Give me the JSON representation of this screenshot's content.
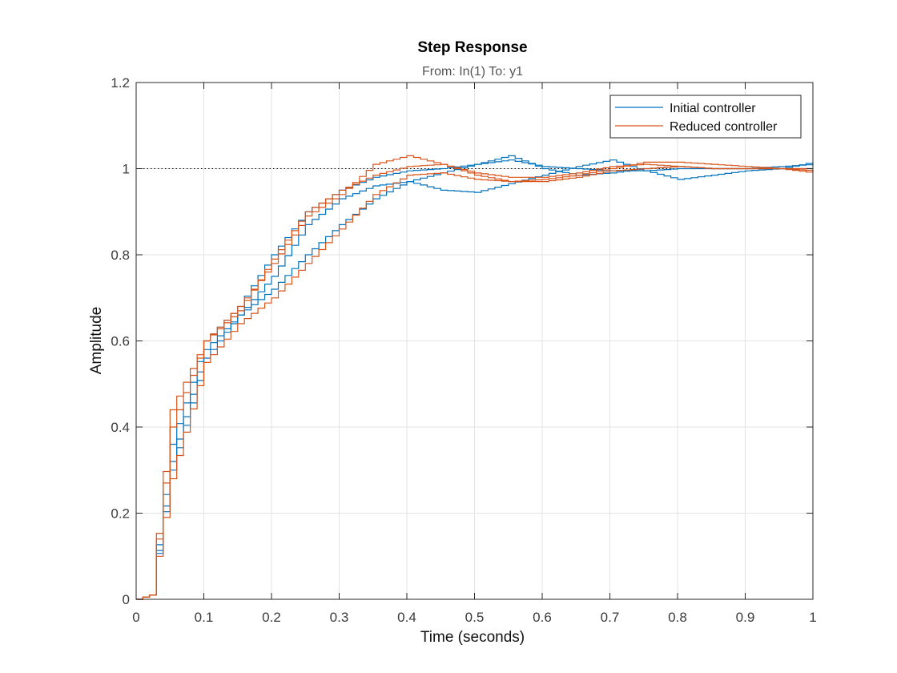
{
  "chart_data": {
    "type": "line",
    "title": "Step Response",
    "subtitle": "From: In(1)  To: y1",
    "xlabel": "Time (seconds)",
    "ylabel": "Amplitude",
    "xlim": [
      0,
      1
    ],
    "ylim": [
      0,
      1.2
    ],
    "xticks": [
      "0",
      "0.1",
      "0.2",
      "0.3",
      "0.4",
      "0.5",
      "0.6",
      "0.7",
      "0.8",
      "0.9",
      "1"
    ],
    "yticks": [
      "0",
      "0.2",
      "0.4",
      "0.6",
      "0.8",
      "1",
      "1.2"
    ],
    "grid": true,
    "legend_position": "top-right",
    "reference_line": 1,
    "step_interval": 0.01,
    "colors": {
      "initial": "#0072BD",
      "reduced": "#D95319",
      "reference": "#000000"
    },
    "series": [
      {
        "name": "Initial controller",
        "group": "initial",
        "x": [
          0,
          0.02,
          0.05,
          0.1,
          0.15,
          0.2,
          0.25,
          0.3,
          0.35,
          0.4,
          0.45,
          0.5,
          0.55,
          0.6,
          0.65,
          0.7,
          0.75,
          0.8,
          0.85,
          0.9,
          0.95,
          1.0
        ],
        "y": [
          0,
          0.01,
          0.36,
          0.6,
          0.68,
          0.8,
          0.9,
          0.95,
          0.98,
          0.995,
          1.0,
          1.01,
          1.02,
          1.005,
          1.0,
          0.995,
          0.995,
          1.0,
          1.0,
          1.0,
          1.005,
          1.01
        ]
      },
      {
        "name": "Initial controller",
        "group": "initial",
        "x": [
          0,
          0.02,
          0.05,
          0.1,
          0.15,
          0.2,
          0.25,
          0.3,
          0.35,
          0.4,
          0.45,
          0.5,
          0.55,
          0.6,
          0.65,
          0.7,
          0.75,
          0.8,
          0.85,
          0.9,
          0.95,
          1.0
        ],
        "y": [
          0,
          0.01,
          0.3,
          0.56,
          0.66,
          0.72,
          0.8,
          0.87,
          0.93,
          0.97,
          0.99,
          1.01,
          1.03,
          1.0,
          0.985,
          0.99,
          1.0,
          1.005,
          1.0,
          1.0,
          1.0,
          1.0
        ]
      },
      {
        "name": "Initial controller",
        "group": "initial",
        "x": [
          0,
          0.02,
          0.05,
          0.1,
          0.15,
          0.2,
          0.25,
          0.3,
          0.35,
          0.4,
          0.45,
          0.5,
          0.55,
          0.6,
          0.65,
          0.7,
          0.75,
          0.8,
          0.85,
          0.9,
          0.95,
          1.0
        ],
        "y": [
          0,
          0.01,
          0.32,
          0.58,
          0.66,
          0.75,
          0.87,
          0.93,
          0.96,
          0.97,
          0.95,
          0.945,
          0.965,
          0.985,
          1.005,
          1.02,
          0.995,
          0.975,
          0.985,
          0.995,
          1.0,
          1.015
        ]
      },
      {
        "name": "Reduced controller",
        "group": "reduced",
        "x": [
          0,
          0.02,
          0.05,
          0.1,
          0.15,
          0.2,
          0.25,
          0.3,
          0.35,
          0.4,
          0.45,
          0.5,
          0.55,
          0.6,
          0.65,
          0.7,
          0.75,
          0.8,
          0.85,
          0.9,
          0.95,
          1.0
        ],
        "y": [
          0,
          0.01,
          0.44,
          0.6,
          0.68,
          0.78,
          0.89,
          0.94,
          1.01,
          1.03,
          1.01,
          0.985,
          0.97,
          0.97,
          0.98,
          0.995,
          1.0,
          1.005,
          1.0,
          1.0,
          1.0,
          0.995
        ]
      },
      {
        "name": "Reduced controller",
        "group": "reduced",
        "x": [
          0,
          0.02,
          0.05,
          0.1,
          0.15,
          0.2,
          0.25,
          0.3,
          0.35,
          0.4,
          0.45,
          0.5,
          0.55,
          0.6,
          0.65,
          0.7,
          0.75,
          0.8,
          0.85,
          0.9,
          0.95,
          1.0
        ],
        "y": [
          0,
          0.01,
          0.28,
          0.55,
          0.64,
          0.7,
          0.78,
          0.86,
          0.94,
          0.985,
          0.99,
          0.975,
          0.97,
          0.975,
          0.985,
          1.0,
          1.015,
          1.015,
          1.01,
          1.005,
          1.0,
          0.99
        ]
      },
      {
        "name": "Reduced controller",
        "group": "reduced",
        "x": [
          0,
          0.02,
          0.05,
          0.1,
          0.15,
          0.2,
          0.25,
          0.3,
          0.35,
          0.4,
          0.45,
          0.5,
          0.55,
          0.6,
          0.65,
          0.7,
          0.75,
          0.8,
          0.85,
          0.9,
          0.95,
          1.0
        ],
        "y": [
          0,
          0.01,
          0.4,
          0.6,
          0.67,
          0.79,
          0.9,
          0.95,
          0.985,
          1.005,
          1.01,
          0.99,
          0.98,
          0.98,
          0.99,
          1.005,
          1.01,
          1.005,
          1.0,
          1.0,
          1.0,
          1.0
        ]
      }
    ],
    "legend": [
      {
        "label": "Initial controller",
        "group": "initial"
      },
      {
        "label": "Reduced controller",
        "group": "reduced"
      }
    ]
  }
}
